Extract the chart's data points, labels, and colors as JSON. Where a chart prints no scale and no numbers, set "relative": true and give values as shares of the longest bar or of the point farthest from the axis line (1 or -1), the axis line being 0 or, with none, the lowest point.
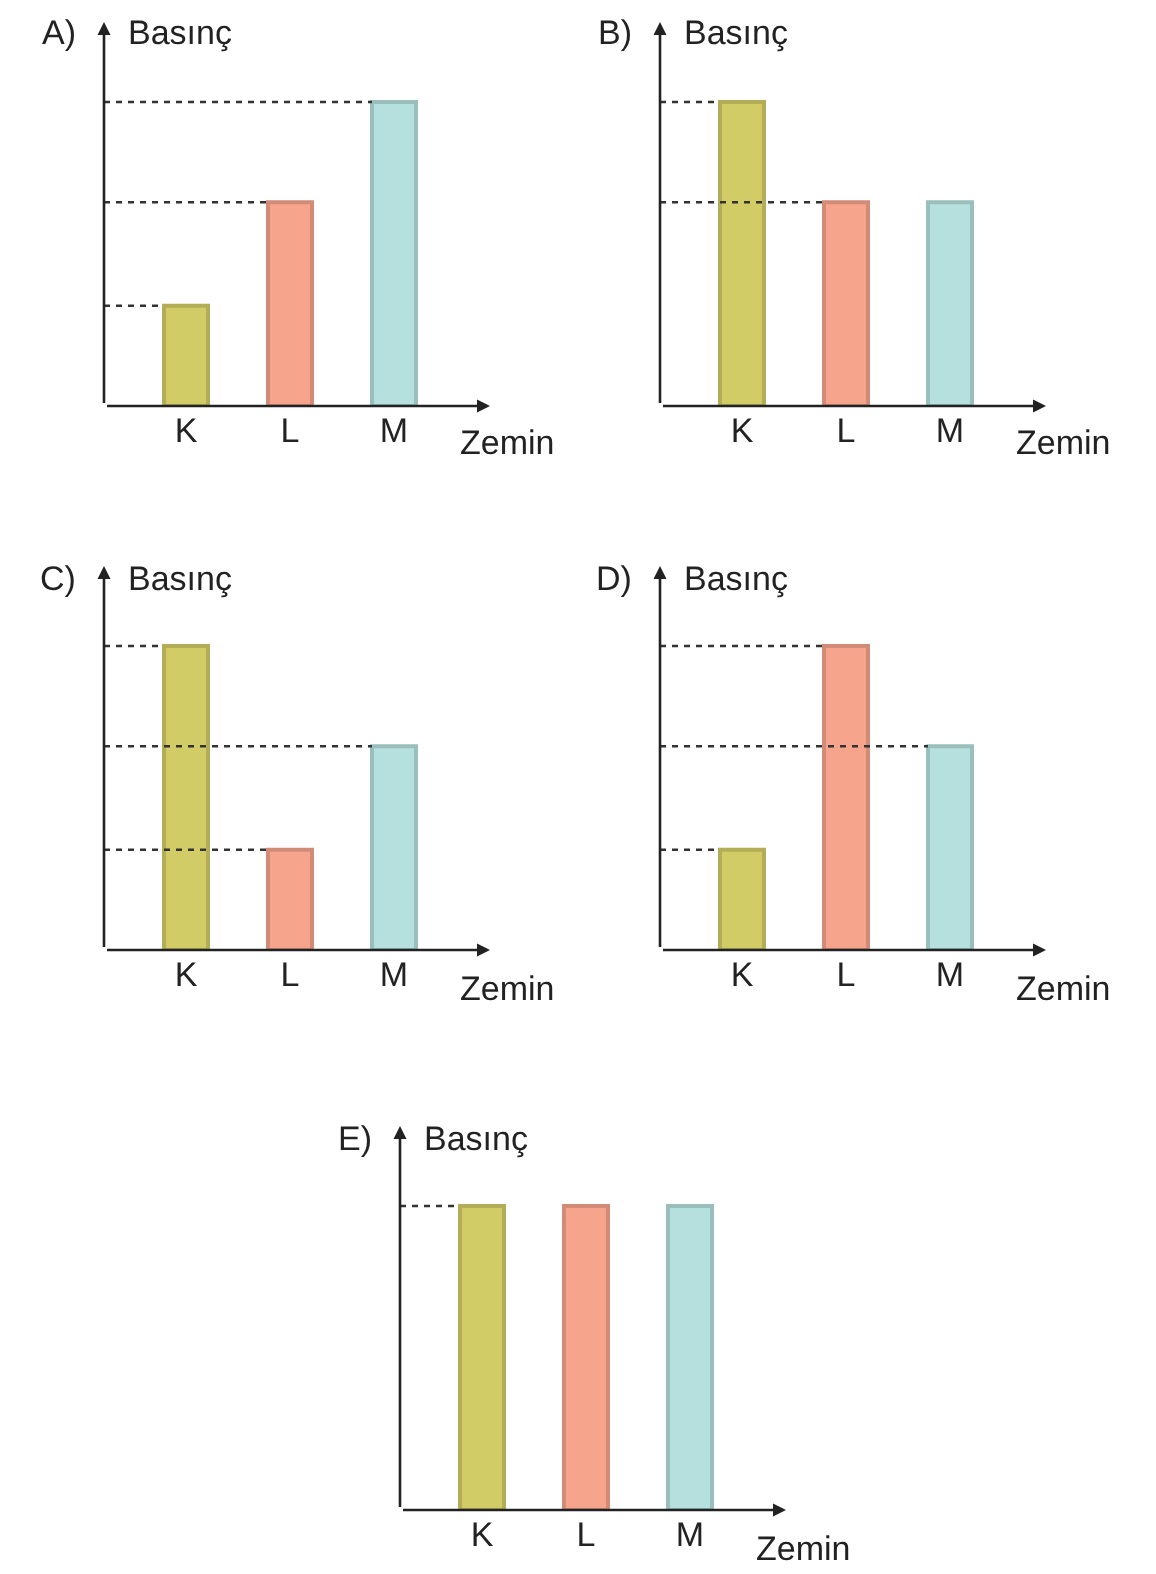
{
  "chart_data": [
    {
      "type": "bar",
      "title": "A)",
      "ylabel": "Basınç",
      "xlabel": "Zemin",
      "relative": true,
      "categories": [
        "K",
        "L",
        "M"
      ],
      "values": [
        0.33,
        0.67,
        1
      ],
      "colors": [
        "#d2cc66",
        "#f6a48c",
        "#b5e0dd"
      ],
      "ref_lines": [
        {
          "axis": "y",
          "value": 0.33,
          "line_style": "dotted"
        },
        {
          "axis": "y",
          "value": 0.67,
          "line_style": "dotted"
        },
        {
          "axis": "y",
          "value": 1,
          "line_style": "dotted"
        }
      ]
    },
    {
      "type": "bar",
      "title": "B)",
      "ylabel": "Basınç",
      "xlabel": "Zemin",
      "relative": true,
      "categories": [
        "K",
        "L",
        "M"
      ],
      "values": [
        1,
        0.67,
        0.67
      ],
      "colors": [
        "#d2cc66",
        "#f6a48c",
        "#b5e0dd"
      ],
      "ref_lines": [
        {
          "axis": "y",
          "value": 1,
          "line_style": "dotted"
        },
        {
          "axis": "y",
          "value": 0.67,
          "line_style": "dotted"
        }
      ]
    },
    {
      "type": "bar",
      "title": "C)",
      "ylabel": "Basınç",
      "xlabel": "Zemin",
      "relative": true,
      "categories": [
        "K",
        "L",
        "M"
      ],
      "values": [
        1,
        0.33,
        0.67
      ],
      "colors": [
        "#d2cc66",
        "#f6a48c",
        "#b5e0dd"
      ],
      "ref_lines": [
        {
          "axis": "y",
          "value": 1,
          "line_style": "dotted"
        },
        {
          "axis": "y",
          "value": 0.67,
          "line_style": "dotted"
        },
        {
          "axis": "y",
          "value": 0.33,
          "line_style": "dotted"
        }
      ]
    },
    {
      "type": "bar",
      "title": "D)",
      "ylabel": "Basınç",
      "xlabel": "Zemin",
      "relative": true,
      "categories": [
        "K",
        "L",
        "M"
      ],
      "values": [
        0.33,
        1,
        0.67
      ],
      "colors": [
        "#d2cc66",
        "#f6a48c",
        "#b5e0dd"
      ],
      "ref_lines": [
        {
          "axis": "y",
          "value": 1,
          "line_style": "dotted"
        },
        {
          "axis": "y",
          "value": 0.67,
          "line_style": "dotted"
        },
        {
          "axis": "y",
          "value": 0.33,
          "line_style": "dotted"
        }
      ]
    },
    {
      "type": "bar",
      "title": "E)",
      "ylabel": "Basınç",
      "xlabel": "Zemin",
      "relative": true,
      "categories": [
        "K",
        "L",
        "M"
      ],
      "values": [
        1,
        1,
        1
      ],
      "colors": [
        "#d2cc66",
        "#f6a48c",
        "#b5e0dd"
      ],
      "ref_lines": [
        {
          "axis": "y",
          "value": 1,
          "line_style": "dotted"
        }
      ]
    }
  ]
}
